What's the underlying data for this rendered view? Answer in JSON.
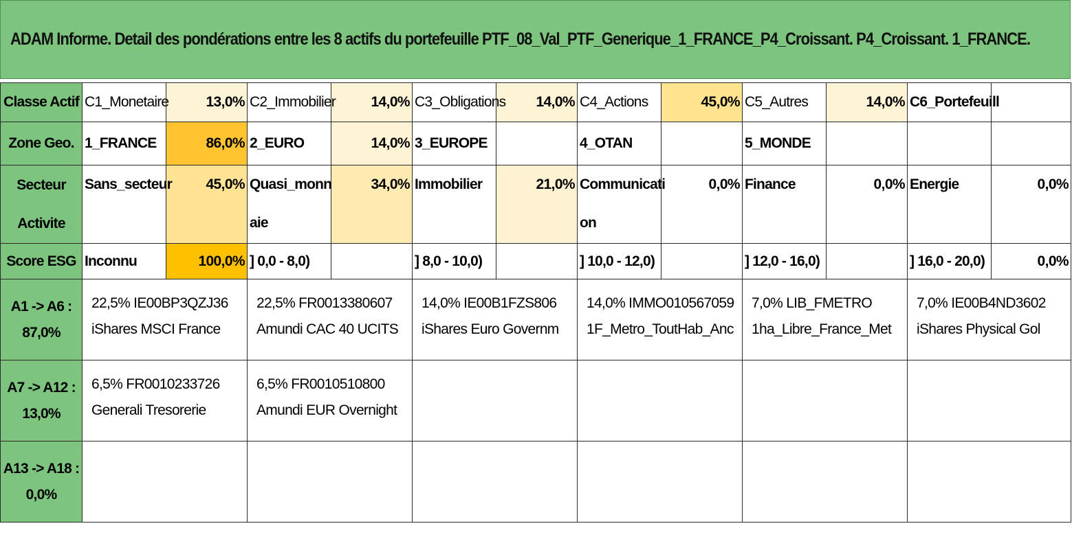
{
  "title": "ADAM Informe. Detail des pondérations entre les 8 actifs du portefeuille PTF_08_Val_PTF_Generique_1_FRANCE_P4_Croissant. P4_Croissant. 1_FRANCE.",
  "colors": {
    "header_green": "#7dc47f",
    "w_lightest": "#fff7e3",
    "w_light": "#ffeeb8",
    "w_mid": "#ffe190",
    "w_strong": "#ffd260",
    "w_max": "#ffc000"
  },
  "rows": {
    "classe": {
      "header": "Classe Actif",
      "cells": [
        {
          "label": "C1_Monetaire",
          "value": "13,0%",
          "shade": "#fff3d6"
        },
        {
          "label": "C2_Immobilier",
          "value": "14,0%",
          "shade": "#fff3d6"
        },
        {
          "label": "C3_Obligations",
          "value": "14,0%",
          "shade": "#fff3d6"
        },
        {
          "label": "C4_Actions",
          "value": "45,0%",
          "shade": "#ffe38f"
        },
        {
          "label": "C5_Autres",
          "value": "14,0%",
          "shade": "#fff3d6"
        },
        {
          "label": "C6_Portefeuill",
          "value": "",
          "shade": "#ffffff"
        }
      ]
    },
    "zone": {
      "header": "Zone Geo.",
      "cells": [
        {
          "label": "1_FRANCE",
          "value": "86,0%",
          "shade": "#ffc430"
        },
        {
          "label": "2_EURO",
          "value": "14,0%",
          "shade": "#fff3d6"
        },
        {
          "label": "3_EUROPE",
          "value": "",
          "shade": "#ffffff"
        },
        {
          "label": "4_OTAN",
          "value": "",
          "shade": "#ffffff"
        },
        {
          "label": "5_MONDE",
          "value": "",
          "shade": "#ffffff"
        },
        {
          "label": "",
          "value": "",
          "shade": "#ffffff"
        }
      ]
    },
    "secteur": {
      "header_line1": "Secteur",
      "header_line2": "Activite",
      "cells": [
        {
          "label_line1": "Sans_secteur",
          "label_line2": "",
          "value": "45,0%",
          "shade": "#ffe294"
        },
        {
          "label_line1": "Quasi_monn",
          "label_line2": "aie",
          "value": "34,0%",
          "shade": "#ffeab2"
        },
        {
          "label_line1": "Immobilier",
          "label_line2": "",
          "value": "21,0%",
          "shade": "#fff2d2"
        },
        {
          "label_line1": "Communicati",
          "label_line2": "on",
          "value": "0,0%",
          "shade": "#ffffff"
        },
        {
          "label_line1": "Finance",
          "label_line2": "",
          "value": "0,0%",
          "shade": "#ffffff"
        },
        {
          "label_line1": "Energie",
          "label_line2": "",
          "value": "0,0%",
          "shade": "#ffffff"
        }
      ]
    },
    "esg": {
      "header": "Score ESG",
      "cells": [
        {
          "label": "Inconnu",
          "value": "100,0%",
          "shade": "#ffc000"
        },
        {
          "label": "] 0,0 - 8,0)",
          "value": "",
          "shade": "#ffffff"
        },
        {
          "label": "] 8,0 - 10,0)",
          "value": "",
          "shade": "#ffffff"
        },
        {
          "label": "] 10,0 - 12,0)",
          "value": "",
          "shade": "#ffffff"
        },
        {
          "label": "] 12,0 - 16,0)",
          "value": "",
          "shade": "#ffffff"
        },
        {
          "label": "] 16,0 - 20,0)",
          "value": "0,0%",
          "shade": "#ffffff"
        }
      ]
    }
  },
  "assets": [
    {
      "header_line1": "A1 -> A6 :",
      "header_line2": "87,0%",
      "items": [
        {
          "line1": "22,5% IE00BP3QZJ36",
          "line2": "iShares MSCI France"
        },
        {
          "line1": "22,5% FR0013380607",
          "line2": "Amundi CAC 40 UCITS"
        },
        {
          "line1": "14,0% IE00B1FZS806",
          "line2": "iShares Euro Governm"
        },
        {
          "line1": "14,0% IMMO010567059",
          "line2": "1F_Metro_ToutHab_Anc"
        },
        {
          "line1": "7,0% LIB_FMETRO",
          "line2": "1ha_Libre_France_Met"
        },
        {
          "line1": "7,0% IE00B4ND3602",
          "line2": "iShares Physical Gol"
        }
      ]
    },
    {
      "header_line1": "A7 -> A12 :",
      "header_line2": "13,0%",
      "items": [
        {
          "line1": "6,5% FR0010233726",
          "line2": "Generali Tresorerie"
        },
        {
          "line1": "6,5% FR0010510800",
          "line2": "Amundi EUR Overnight"
        },
        {
          "line1": "",
          "line2": ""
        },
        {
          "line1": "",
          "line2": ""
        },
        {
          "line1": "",
          "line2": ""
        },
        {
          "line1": "",
          "line2": ""
        }
      ]
    },
    {
      "header_line1": "A13 -> A18 :",
      "header_line2": "0,0%",
      "items": [
        {
          "line1": "",
          "line2": ""
        },
        {
          "line1": "",
          "line2": ""
        },
        {
          "line1": "",
          "line2": ""
        },
        {
          "line1": "",
          "line2": ""
        },
        {
          "line1": "",
          "line2": ""
        },
        {
          "line1": "",
          "line2": ""
        }
      ]
    }
  ]
}
